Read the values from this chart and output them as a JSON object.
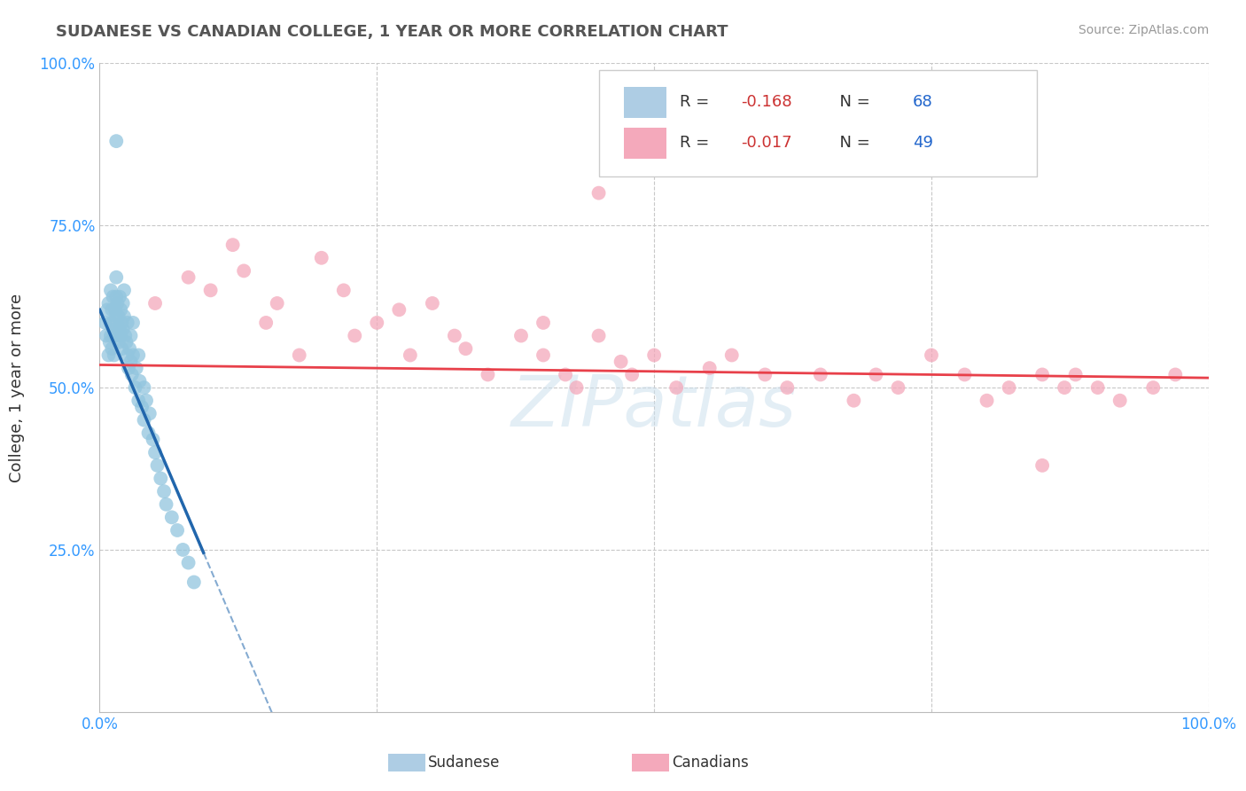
{
  "title": "SUDANESE VS CANADIAN COLLEGE, 1 YEAR OR MORE CORRELATION CHART",
  "source_text": "Source: ZipAtlas.com",
  "ylabel": "College, 1 year or more",
  "xlim": [
    0,
    1
  ],
  "ylim": [
    0,
    1
  ],
  "sudanese_R": -0.168,
  "sudanese_N": 68,
  "canadians_R": -0.017,
  "canadians_N": 49,
  "blue_color": "#92c5de",
  "pink_color": "#f4a9bb",
  "blue_line_color": "#2166ac",
  "pink_line_color": "#e8404a",
  "watermark": "ZIPatlas",
  "sudanese_x": [
    0.005,
    0.006,
    0.007,
    0.008,
    0.008,
    0.009,
    0.01,
    0.01,
    0.01,
    0.011,
    0.011,
    0.012,
    0.012,
    0.013,
    0.013,
    0.014,
    0.014,
    0.015,
    0.015,
    0.015,
    0.016,
    0.016,
    0.017,
    0.017,
    0.018,
    0.018,
    0.019,
    0.019,
    0.02,
    0.02,
    0.021,
    0.021,
    0.022,
    0.022,
    0.023,
    0.024,
    0.025,
    0.025,
    0.026,
    0.027,
    0.028,
    0.028,
    0.029,
    0.03,
    0.03,
    0.032,
    0.033,
    0.035,
    0.035,
    0.036,
    0.038,
    0.04,
    0.04,
    0.042,
    0.044,
    0.045,
    0.048,
    0.05,
    0.052,
    0.055,
    0.058,
    0.06,
    0.065,
    0.07,
    0.075,
    0.08,
    0.085,
    0.015
  ],
  "sudanese_y": [
    0.6,
    0.58,
    0.62,
    0.55,
    0.63,
    0.57,
    0.65,
    0.6,
    0.58,
    0.62,
    0.56,
    0.6,
    0.64,
    0.58,
    0.55,
    0.62,
    0.59,
    0.67,
    0.64,
    0.61,
    0.58,
    0.63,
    0.61,
    0.57,
    0.64,
    0.59,
    0.62,
    0.58,
    0.6,
    0.56,
    0.63,
    0.59,
    0.65,
    0.61,
    0.58,
    0.57,
    0.55,
    0.6,
    0.53,
    0.56,
    0.54,
    0.58,
    0.52,
    0.55,
    0.6,
    0.5,
    0.53,
    0.48,
    0.55,
    0.51,
    0.47,
    0.5,
    0.45,
    0.48,
    0.43,
    0.46,
    0.42,
    0.4,
    0.38,
    0.36,
    0.34,
    0.32,
    0.3,
    0.28,
    0.25,
    0.23,
    0.2,
    0.88
  ],
  "canadians_x": [
    0.05,
    0.08,
    0.1,
    0.12,
    0.13,
    0.15,
    0.16,
    0.18,
    0.2,
    0.22,
    0.23,
    0.25,
    0.27,
    0.28,
    0.3,
    0.32,
    0.33,
    0.35,
    0.38,
    0.4,
    0.4,
    0.42,
    0.43,
    0.45,
    0.47,
    0.48,
    0.5,
    0.52,
    0.55,
    0.57,
    0.6,
    0.62,
    0.65,
    0.68,
    0.7,
    0.72,
    0.75,
    0.78,
    0.8,
    0.82,
    0.85,
    0.85,
    0.87,
    0.88,
    0.9,
    0.92,
    0.95,
    0.97,
    0.45
  ],
  "canadians_y": [
    0.63,
    0.67,
    0.65,
    0.72,
    0.68,
    0.6,
    0.63,
    0.55,
    0.7,
    0.65,
    0.58,
    0.6,
    0.62,
    0.55,
    0.63,
    0.58,
    0.56,
    0.52,
    0.58,
    0.55,
    0.6,
    0.52,
    0.5,
    0.58,
    0.54,
    0.52,
    0.55,
    0.5,
    0.53,
    0.55,
    0.52,
    0.5,
    0.52,
    0.48,
    0.52,
    0.5,
    0.55,
    0.52,
    0.48,
    0.5,
    0.52,
    0.38,
    0.5,
    0.52,
    0.5,
    0.48,
    0.5,
    0.52,
    0.8
  ],
  "blue_reg_slope": -4.0,
  "blue_reg_intercept": 0.62,
  "pink_reg_slope": -0.02,
  "pink_reg_intercept": 0.535
}
